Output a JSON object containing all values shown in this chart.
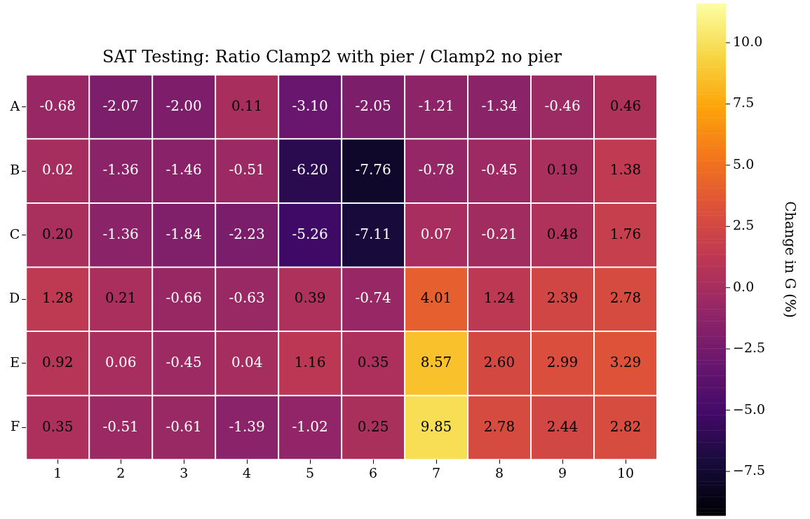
{
  "chart_data": {
    "type": "heatmap",
    "title": "SAT Testing: Ratio Clamp2 with pier / Clamp2 no pier",
    "clabel": "Change in G (%)",
    "categories": [
      "1",
      "2",
      "3",
      "4",
      "5",
      "6",
      "7",
      "8",
      "9",
      "10"
    ],
    "y_categories": [
      "A",
      "B",
      "C",
      "D",
      "E",
      "F"
    ],
    "cells": [
      [
        -0.68,
        -2.07,
        -2.0,
        0.11,
        -3.1,
        -2.05,
        -1.21,
        -1.34,
        -0.46,
        0.46
      ],
      [
        0.02,
        -1.36,
        -1.46,
        -0.51,
        -6.2,
        -7.76,
        -0.78,
        -0.45,
        0.19,
        1.38
      ],
      [
        0.2,
        -1.36,
        -1.84,
        -2.23,
        -5.26,
        -7.11,
        0.07,
        -0.21,
        0.48,
        1.76
      ],
      [
        1.28,
        0.21,
        -0.66,
        -0.63,
        0.39,
        -0.74,
        4.01,
        1.24,
        2.39,
        2.78
      ],
      [
        0.92,
        0.06,
        -0.45,
        0.04,
        1.16,
        0.35,
        8.57,
        2.6,
        2.99,
        3.29
      ],
      [
        0.35,
        -0.51,
        -0.61,
        -1.39,
        -1.02,
        0.25,
        9.85,
        2.78,
        2.44,
        2.82
      ]
    ],
    "data_labels": true,
    "cell_labels": [
      [
        "-0.68",
        "-2.07",
        "-2.00",
        "0.11",
        "-3.10",
        "-2.05",
        "-1.21",
        "-1.34",
        "-0.46",
        "0.46"
      ],
      [
        "0.02",
        "-1.36",
        "-1.46",
        "-0.51",
        "-6.20",
        "-7.76",
        "-0.78",
        "-0.45",
        "0.19",
        "1.38"
      ],
      [
        "0.20",
        "-1.36",
        "-1.84",
        "-2.23",
        "-5.26",
        "-7.11",
        "0.07",
        "-0.21",
        "0.48",
        "1.76"
      ],
      [
        "1.28",
        "0.21",
        "-0.66",
        "-0.63",
        "0.39",
        "-0.74",
        "4.01",
        "1.24",
        "2.39",
        "2.78"
      ],
      [
        "0.92",
        "0.06",
        "-0.45",
        "0.04",
        "1.16",
        "0.35",
        "8.57",
        "2.60",
        "2.99",
        "3.29"
      ],
      [
        "0.35",
        "-0.51",
        "-0.61",
        "-1.39",
        "-1.02",
        "0.25",
        "9.85",
        "2.78",
        "2.44",
        "2.82"
      ]
    ],
    "clim": [
      -9.3,
      11.6
    ],
    "cticks": [
      {
        "value": -7.5,
        "label": "−7.5"
      },
      {
        "value": -5,
        "label": "−5.0"
      },
      {
        "value": -2.5,
        "label": "−2.5"
      },
      {
        "value": 0,
        "label": "0.0"
      },
      {
        "value": 2.5,
        "label": "2.5"
      },
      {
        "value": 5,
        "label": "5.0"
      },
      {
        "value": 7.5,
        "label": "7.5"
      },
      {
        "value": 10,
        "label": "10.0"
      }
    ]
  }
}
